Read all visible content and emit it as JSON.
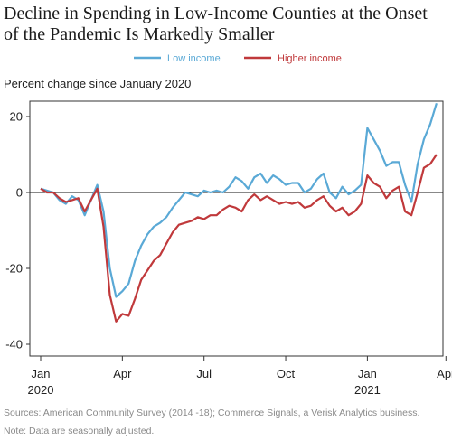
{
  "chart_data": {
    "type": "line",
    "title": "Decline in Spending in Low-Income Counties at the Onset of the Pandemic Is Markedly Smaller",
    "ylabel": "Percent change since January 2020",
    "xlabel": "",
    "ylim": [
      -40,
      25
    ],
    "y_ticks": [
      20,
      0,
      -20,
      -40
    ],
    "y_tick_labels": [
      "20",
      "0",
      "-20",
      "-40"
    ],
    "x_ticks": [
      {
        "week": 0,
        "label": "Jan",
        "sublabel": "2020"
      },
      {
        "week": 13,
        "label": "Apr",
        "sublabel": ""
      },
      {
        "week": 26,
        "label": "Jul",
        "sublabel": ""
      },
      {
        "week": 39,
        "label": "Oct",
        "sublabel": ""
      },
      {
        "week": 52,
        "label": "Jan",
        "sublabel": "2021"
      },
      {
        "week": 64.5,
        "label": "Apr",
        "sublabel": ""
      }
    ],
    "x_unit": "weeks since early January 2020",
    "grid": false,
    "zero_line": true,
    "legend_position": "top-center",
    "series": [
      {
        "name": "Low income",
        "color": "#5aa9d6",
        "values": [
          1,
          0.5,
          0,
          -2,
          -3,
          -1,
          -2,
          -6,
          -2,
          2,
          -5,
          -20,
          -27.5,
          -26,
          -24,
          -18,
          -14,
          -11,
          -9,
          -8,
          -6.5,
          -4,
          -2,
          0,
          -0.5,
          -1,
          0.5,
          0,
          0.5,
          0,
          1.5,
          4,
          3,
          1,
          4,
          5,
          2.5,
          4.5,
          3.5,
          2,
          2.5,
          2.5,
          0,
          1,
          3.5,
          5,
          0,
          -1.5,
          1.5,
          -0.5,
          0.5,
          2,
          17,
          14,
          11,
          7,
          8,
          8,
          2,
          -2.5,
          7.5,
          14,
          18,
          23.5
        ]
      },
      {
        "name": "Higher income",
        "color": "#c0393b",
        "values": [
          1,
          0,
          0,
          -1.5,
          -2.5,
          -2,
          -1.5,
          -5,
          -2,
          1,
          -9,
          -27,
          -34,
          -32,
          -32.5,
          -28,
          -23,
          -20.5,
          -18,
          -16.5,
          -13.5,
          -10.5,
          -8.5,
          -8,
          -7.5,
          -6.5,
          -7,
          -6,
          -6,
          -4.5,
          -3.5,
          -4,
          -5,
          -2,
          -0.5,
          -2,
          -1,
          -2,
          -3,
          -2.5,
          -3,
          -2.5,
          -4,
          -3.5,
          -2,
          -1,
          -3.5,
          -5,
          -4,
          -6,
          -5,
          -3,
          4.5,
          2.5,
          1.5,
          -1.5,
          0.5,
          1.5,
          -5,
          -6,
          0,
          6.5,
          7.5,
          10
        ]
      }
    ],
    "notes": [
      "Sources: American Community Survey (2014 -18);  Commerce Signals, a Verisk Analytics business.",
      "Note: Data are seasonally adjusted."
    ]
  }
}
